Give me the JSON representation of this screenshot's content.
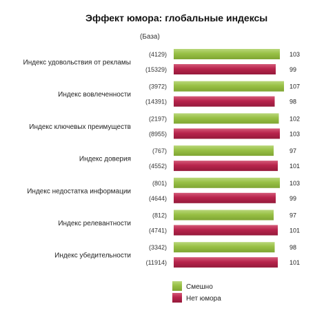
{
  "chart_data": {
    "type": "bar",
    "orientation": "horizontal",
    "title": "Эффект юмора: глобальные индексы",
    "base_header": "(База)",
    "categories": [
      "Индекс удовольствия от рекламы",
      "Индекс вовлеченности",
      "Индекс ключевых преимуществ",
      "Индекс доверия",
      "Индекс недостатка информации",
      "Индекс релевантности",
      "Индекс убедительности"
    ],
    "series": [
      {
        "name": "Смешно",
        "color": "#93bb3e",
        "values": [
          103,
          107,
          102,
          97,
          103,
          97,
          98
        ],
        "bases": [
          "(4129)",
          "(3972)",
          "(2197)",
          "(767)",
          "(801)",
          "(812)",
          "(3342)"
        ]
      },
      {
        "name": "Нет юмора",
        "color": "#b8244c",
        "values": [
          99,
          98,
          103,
          101,
          99,
          101,
          101
        ],
        "bases": [
          "(15329)",
          "(14391)",
          "(8955)",
          "(4552)",
          "(4644)",
          "(4741)",
          "(11914)"
        ]
      }
    ],
    "value_axis": {
      "visible": false,
      "range": [
        0,
        107
      ]
    },
    "grid": false,
    "legend_placement": "bottom"
  }
}
